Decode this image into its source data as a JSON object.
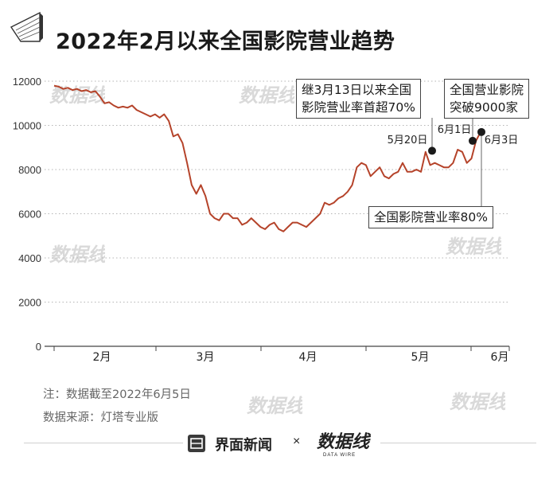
{
  "title": "2022年2月以来全国影院营业趋势",
  "chart_data": {
    "type": "line",
    "ylim": [
      0,
      12000
    ],
    "yticks": [
      0,
      2000,
      4000,
      6000,
      8000,
      10000,
      12000
    ],
    "ytick_labels": [
      "0",
      "2000",
      "4000",
      "6000",
      "8000",
      "10000",
      "12000"
    ],
    "xtick_labels": [
      "2月",
      "3月",
      "4月",
      "5月",
      "6月"
    ],
    "line_color": "#b5432a",
    "series": [
      {
        "values": [
          11800,
          11750,
          11650,
          11700,
          11600,
          11650,
          11550,
          11600,
          11500,
          11550,
          11300,
          11000,
          11050,
          10900,
          10800,
          10850,
          10800,
          10900,
          10700,
          10600,
          10500,
          10400,
          10500,
          10350,
          10500,
          10200,
          9500,
          9600,
          9200,
          8300,
          7300,
          6900,
          7300,
          6800,
          6000,
          5800,
          5700,
          6000,
          6000,
          5800,
          5800,
          5500,
          5600,
          5800,
          5600,
          5400,
          5300,
          5500,
          5600,
          5300,
          5200,
          5400,
          5600,
          5600,
          5500,
          5400,
          5600,
          5800,
          6000,
          6500,
          6400,
          6500,
          6700,
          6800,
          7000,
          7300,
          8100,
          8300,
          8200,
          7700,
          7900,
          8100,
          7700,
          7600,
          7800,
          7900,
          8300,
          7900,
          7900,
          8000,
          7900,
          8800,
          8200,
          8300,
          8200,
          8100,
          8100,
          8300,
          8900,
          8800,
          8300,
          8500,
          9300,
          9700
        ]
      }
    ],
    "highlights": [
      {
        "label": "5月20日",
        "value": 8850
      },
      {
        "label": "6月1日",
        "value": 9300
      },
      {
        "label": "6月3日",
        "value": 9700
      }
    ],
    "annotations": [
      {
        "line1": "继3月13日以来全国",
        "line2": "影院营业率首超70%"
      },
      {
        "line1": "全国营业影院",
        "line2": "突破9000家"
      },
      {
        "line1": "全国影院营业率80%",
        "line2": ""
      }
    ]
  },
  "notes": {
    "line1": "注：数据截至2022年6月5日",
    "line2": "数据来源：灯塔专业版"
  },
  "footer": {
    "brand": "界面新闻",
    "times": "×",
    "logo_caption": "DATA WIRE"
  },
  "watermark_text": "数据线"
}
